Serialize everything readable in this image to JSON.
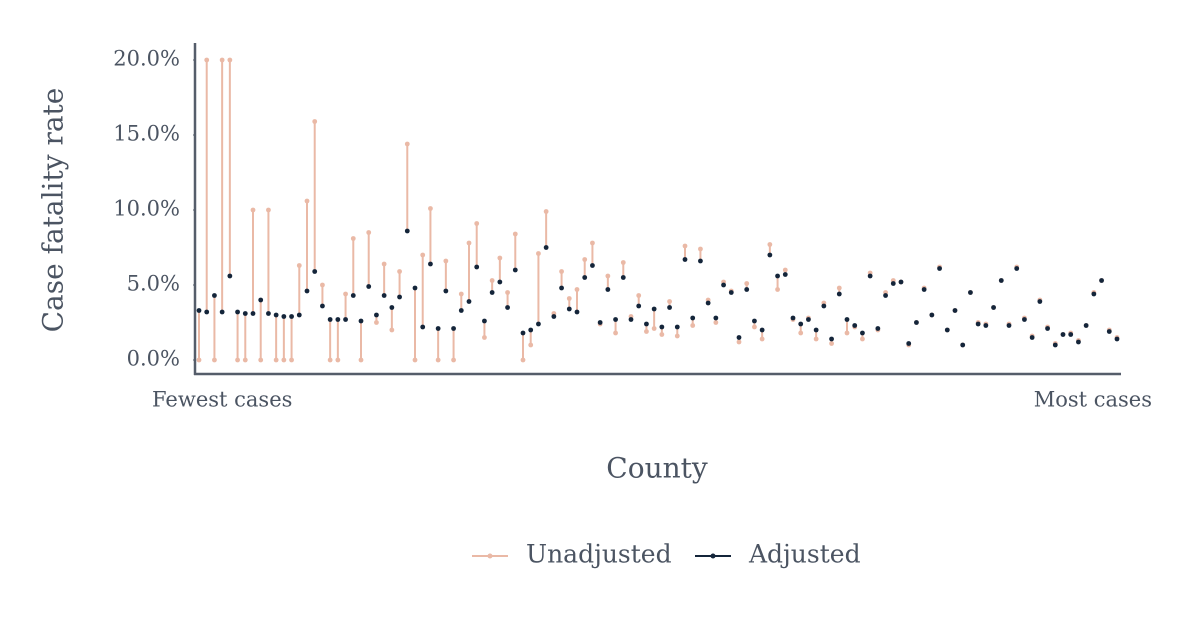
{
  "chart_data": {
    "type": "lollipop",
    "ylabel": "Case fatality rate",
    "xlabel": "County",
    "categories": [
      "Fewest cases",
      null,
      null,
      null,
      null,
      null,
      null,
      null,
      null,
      null,
      null,
      null,
      null,
      null,
      null,
      null,
      null,
      null,
      null,
      null,
      null,
      null,
      null,
      null,
      null,
      null,
      null,
      null,
      null,
      null,
      null,
      null,
      null,
      null,
      null,
      null,
      null,
      null,
      null,
      null,
      null,
      null,
      null,
      null,
      null,
      null,
      null,
      null,
      null,
      null,
      null,
      null,
      null,
      null,
      null,
      null,
      null,
      null,
      null,
      null,
      null,
      null,
      null,
      null,
      null,
      null,
      null,
      null,
      null,
      null,
      null,
      null,
      null,
      null,
      null,
      null,
      null,
      null,
      null,
      null,
      null,
      null,
      null,
      null,
      null,
      null,
      null,
      null,
      null,
      null,
      null,
      null,
      null,
      null,
      null,
      null,
      null,
      null,
      null,
      null,
      null,
      null,
      null,
      null,
      null,
      null,
      null,
      null,
      null,
      null,
      null,
      null,
      null,
      null,
      null,
      null,
      null,
      null,
      null,
      "Most cases"
    ],
    "series": [
      {
        "name": "Unadjusted",
        "color": "#eab9a6",
        "values": [
          0,
          20,
          0,
          20,
          20,
          0,
          0,
          10,
          0,
          10,
          0,
          0,
          0,
          6.3,
          10.6,
          15.9,
          5.0,
          0,
          0,
          4.4,
          8.1,
          0,
          8.5,
          2.5,
          6.4,
          2.0,
          5.9,
          14.4,
          0,
          7.0,
          10.1,
          0,
          6.6,
          0,
          4.4,
          7.8,
          9.1,
          1.5,
          5.3,
          6.8,
          4.5,
          8.4,
          0,
          1.0,
          7.1,
          9.9,
          3.1,
          5.9,
          4.1,
          4.7,
          6.7,
          7.8,
          2.4,
          5.6,
          1.8,
          6.5,
          2.9,
          4.3,
          1.9,
          2.1,
          1.7,
          3.9,
          1.6,
          7.6,
          2.3,
          7.4,
          4.0,
          2.5,
          5.2,
          4.6,
          1.2,
          5.1,
          2.2,
          1.4,
          7.7,
          4.7,
          6.0,
          2.7,
          1.8,
          2.8,
          1.4,
          3.8,
          1.1,
          4.8,
          1.8,
          2.2,
          1.4,
          5.8,
          2.0,
          4.5,
          5.3,
          5.2,
          1.0,
          2.5,
          4.8,
          3.0,
          6.2,
          2.0,
          3.3,
          1.0,
          4.5,
          2.5,
          2.4,
          3.5,
          5.3,
          2.4,
          6.2,
          2.8,
          1.6,
          4.0,
          2.2,
          1.1,
          1.7,
          1.8,
          1.3,
          2.3,
          4.5,
          5.3,
          2.0,
          1.5
        ]
      },
      {
        "name": "Adjusted",
        "color": "#14253a",
        "values": [
          3.3,
          3.2,
          4.3,
          3.2,
          5.6,
          3.2,
          3.1,
          3.1,
          4.0,
          3.1,
          3.0,
          2.9,
          2.9,
          3.0,
          4.6,
          5.9,
          3.6,
          2.7,
          2.7,
          2.7,
          4.3,
          2.6,
          4.9,
          3.0,
          4.3,
          3.5,
          4.2,
          8.6,
          4.8,
          2.2,
          6.4,
          2.1,
          4.6,
          2.1,
          3.3,
          3.9,
          6.2,
          2.6,
          4.5,
          5.2,
          3.5,
          6.0,
          1.8,
          2.0,
          2.4,
          7.5,
          2.9,
          4.8,
          3.4,
          3.2,
          5.5,
          6.3,
          2.5,
          4.7,
          2.7,
          5.5,
          2.7,
          3.6,
          2.4,
          3.4,
          2.2,
          3.5,
          2.2,
          6.7,
          2.8,
          6.6,
          3.8,
          2.8,
          5.0,
          4.5,
          1.5,
          4.7,
          2.6,
          2.0,
          7.0,
          5.6,
          5.7,
          2.8,
          2.4,
          2.7,
          2.0,
          3.6,
          1.4,
          4.4,
          2.7,
          2.3,
          1.8,
          5.6,
          2.1,
          4.3,
          5.1,
          5.2,
          1.1,
          2.5,
          4.7,
          3.0,
          6.1,
          2.0,
          3.3,
          1.0,
          4.5,
          2.4,
          2.3,
          3.5,
          5.3,
          2.3,
          6.1,
          2.7,
          1.5,
          3.9,
          2.1,
          1.0,
          1.7,
          1.7,
          1.2,
          2.3,
          4.4,
          5.3,
          1.9,
          1.4
        ]
      }
    ],
    "ylim": [
      0,
      20
    ],
    "yticks": [
      {
        "value": 0,
        "label": "0.0%"
      },
      {
        "value": 5,
        "label": "5.0%"
      },
      {
        "value": 10,
        "label": "10.0%"
      },
      {
        "value": 15,
        "label": "15.0%"
      },
      {
        "value": 20,
        "label": "20.0%"
      }
    ],
    "grid": false,
    "legend": "bottom"
  }
}
